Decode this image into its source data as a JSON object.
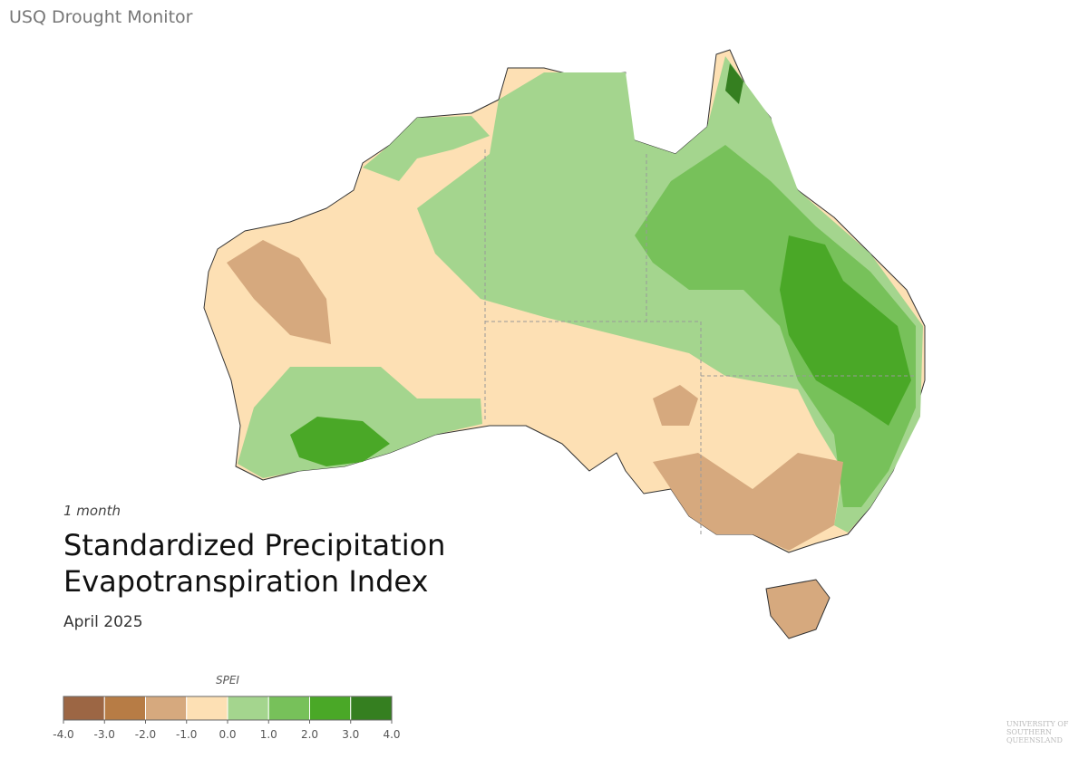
{
  "header": {
    "title": "USQ Drought Monitor"
  },
  "map": {
    "period": "1 month",
    "title_lines": [
      "Standardized Precipitation",
      "Evapotranspiration Index"
    ],
    "date": "April 2025"
  },
  "legend": {
    "title": "SPEI",
    "ticks": [
      {
        "value": -4,
        "label": "-4.0"
      },
      {
        "value": -3,
        "label": "-3.0"
      },
      {
        "value": -2,
        "label": "-2.0"
      },
      {
        "value": -1,
        "label": "-1.0"
      },
      {
        "value": 0,
        "label": "0.0"
      },
      {
        "value": 1,
        "label": "1.0"
      },
      {
        "value": 2,
        "label": "2.0"
      },
      {
        "value": 3,
        "label": "3.0"
      },
      {
        "value": 4,
        "label": "4.0"
      }
    ],
    "colors": [
      "#9c6644",
      "#b77c45",
      "#d6a97e",
      "#fde0b4",
      "#a4d58e",
      "#77c15a",
      "#4aa827",
      "#357f20"
    ]
  },
  "logo_text": "UNIVERSITY OF SOUTHERN QUEENSLAND"
}
